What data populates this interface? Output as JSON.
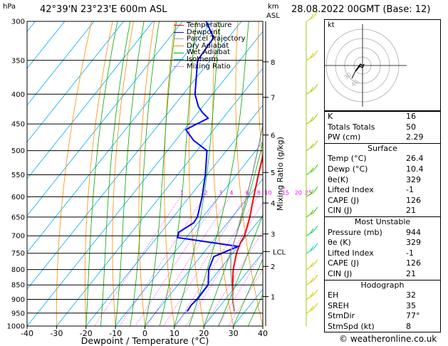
{
  "header": {
    "location": "42°39'N  23°23'E  600m  ASL",
    "hpa_unit": "hPa",
    "km_unit": "km",
    "asl_unit": "ASL",
    "datetime": "28.08.2022  00GMT  (Base: 12)"
  },
  "legend": {
    "items": [
      {
        "label": "Temperature",
        "color": "#ff0000"
      },
      {
        "label": "Dewpoint",
        "color": "#0000ff"
      },
      {
        "label": "Parcel Trajectory",
        "color": "#999999"
      },
      {
        "label": "Dry Adiabat",
        "color": "#ff8c00"
      },
      {
        "label": "Wet Adiabat",
        "color": "#00aa00"
      },
      {
        "label": "Isotherm",
        "color": "#00aaff"
      },
      {
        "label": "Mixing Ratio",
        "color": "#ff00ff"
      }
    ]
  },
  "chart_data": {
    "type": "line",
    "xlabel": "Dewpoint / Temperature (°C)",
    "ylabel_right": "Mixing Ratio (g/kg)",
    "pressure_levels": [
      300,
      350,
      400,
      450,
      500,
      550,
      600,
      650,
      700,
      750,
      800,
      850,
      900,
      950,
      1000
    ],
    "x_ticks": [
      -40,
      -30,
      -20,
      -10,
      0,
      10,
      20,
      30,
      40
    ],
    "xlim": [
      -40,
      40
    ],
    "plim": [
      300,
      1000
    ],
    "km_ticks": [
      {
        "label": "8",
        "p": 352
      },
      {
        "label": "7",
        "p": 405
      },
      {
        "label": "6",
        "p": 470
      },
      {
        "label": "5",
        "p": 545
      },
      {
        "label": "4",
        "p": 615
      },
      {
        "label": "3",
        "p": 695
      },
      {
        "label": "2",
        "p": 790
      },
      {
        "label": "1",
        "p": 890
      }
    ],
    "lcl": {
      "label": "LCL",
      "p": 745
    },
    "mixing_ratio_labels": [
      "1",
      "2",
      "3",
      "4",
      "6",
      "8",
      "10",
      "15",
      "20",
      "25"
    ],
    "series": [
      {
        "name": "Temperature",
        "color": "#ff0000",
        "points": [
          [
            944,
            26.4
          ],
          [
            900,
            22.5
          ],
          [
            850,
            18.6
          ],
          [
            800,
            14.6
          ],
          [
            750,
            11.3
          ],
          [
            720,
            9.8
          ],
          [
            700,
            9.3
          ],
          [
            650,
            6.0
          ],
          [
            600,
            1.8
          ],
          [
            550,
            -2.6
          ],
          [
            500,
            -7.2
          ],
          [
            480,
            -8.3
          ],
          [
            450,
            -11.6
          ],
          [
            400,
            -17.8
          ],
          [
            350,
            -25.2
          ],
          [
            300,
            -33.0
          ]
        ]
      },
      {
        "name": "Dewpoint",
        "color": "#0000ff",
        "points": [
          [
            944,
            10.4
          ],
          [
            920,
            10.0
          ],
          [
            900,
            10.5
          ],
          [
            850,
            10.3
          ],
          [
            800,
            6.3
          ],
          [
            760,
            4.5
          ],
          [
            730,
            10.0
          ],
          [
            705,
            -13.0
          ],
          [
            690,
            -14.0
          ],
          [
            665,
            -11.5
          ],
          [
            650,
            -11.8
          ],
          [
            600,
            -15.7
          ],
          [
            550,
            -20.6
          ],
          [
            500,
            -26.6
          ],
          [
            480,
            -34.0
          ],
          [
            460,
            -39.5
          ],
          [
            440,
            -35.0
          ],
          [
            430,
            -38.5
          ],
          [
            420,
            -41.5
          ],
          [
            400,
            -46.0
          ],
          [
            350,
            -54.3
          ],
          [
            320,
            -55.0
          ],
          [
            300,
            -62.0
          ]
        ]
      },
      {
        "name": "Parcel Trajectory",
        "color": "#999999",
        "points": [
          [
            944,
            26.4
          ],
          [
            900,
            22.6
          ],
          [
            850,
            18.3
          ],
          [
            800,
            13.8
          ],
          [
            745,
            8.9
          ],
          [
            700,
            6.4
          ],
          [
            650,
            3.0
          ],
          [
            600,
            -0.6
          ],
          [
            550,
            -4.7
          ],
          [
            500,
            -9.4
          ],
          [
            450,
            -14.8
          ],
          [
            400,
            -21.0
          ],
          [
            350,
            -28.3
          ],
          [
            300,
            -37.0
          ]
        ]
      }
    ],
    "wind_barbs": [
      {
        "p": 300,
        "color": "#cccc00"
      },
      {
        "p": 350,
        "color": "#cccc00"
      },
      {
        "p": 400,
        "color": "#99cc00"
      },
      {
        "p": 450,
        "color": "#99cc00"
      },
      {
        "p": 500,
        "color": "#99cc00"
      },
      {
        "p": 550,
        "color": "#33cc00"
      },
      {
        "p": 600,
        "color": "#33cc00"
      },
      {
        "p": 650,
        "color": "#33cc00"
      },
      {
        "p": 700,
        "color": "#00cc66"
      },
      {
        "p": 750,
        "color": "#00cccc"
      },
      {
        "p": 800,
        "color": "#cccc00"
      },
      {
        "p": 850,
        "color": "#cccc00"
      },
      {
        "p": 900,
        "color": "#cccc00"
      },
      {
        "p": 950,
        "color": "#cccc00"
      }
    ]
  },
  "hodograph": {
    "unit": "kt",
    "ring_labels": [
      "40",
      "30"
    ]
  },
  "indices": {
    "top": [
      {
        "label": "K",
        "value": "16"
      },
      {
        "label": "Totals Totals",
        "value": "50"
      },
      {
        "label": "PW (cm)",
        "value": "2.29"
      }
    ],
    "surface": {
      "title": "Surface",
      "rows": [
        {
          "label": "Temp (°C)",
          "value": "26.4"
        },
        {
          "label": "Dewp (°C)",
          "value": "10.4"
        },
        {
          "label": "θe(K)",
          "value": "329"
        },
        {
          "label": "Lifted Index",
          "value": "-1"
        },
        {
          "label": "CAPE (J)",
          "value": "126"
        },
        {
          "label": "CIN (J)",
          "value": "21"
        }
      ]
    },
    "most_unstable": {
      "title": "Most Unstable",
      "rows": [
        {
          "label": "Pressure (mb)",
          "value": "944"
        },
        {
          "label": "θe (K)",
          "value": "329"
        },
        {
          "label": "Lifted Index",
          "value": "-1"
        },
        {
          "label": "CAPE (J)",
          "value": "126"
        },
        {
          "label": "CIN (J)",
          "value": "21"
        }
      ]
    },
    "hodograph_box": {
      "title": "Hodograph",
      "rows": [
        {
          "label": "EH",
          "value": "32"
        },
        {
          "label": "SREH",
          "value": "35"
        },
        {
          "label": "StmDir",
          "value": "77°"
        },
        {
          "label": "StmSpd (kt)",
          "value": "8"
        }
      ]
    }
  },
  "footer": {
    "copyright": "© weatheronline.co.uk"
  }
}
